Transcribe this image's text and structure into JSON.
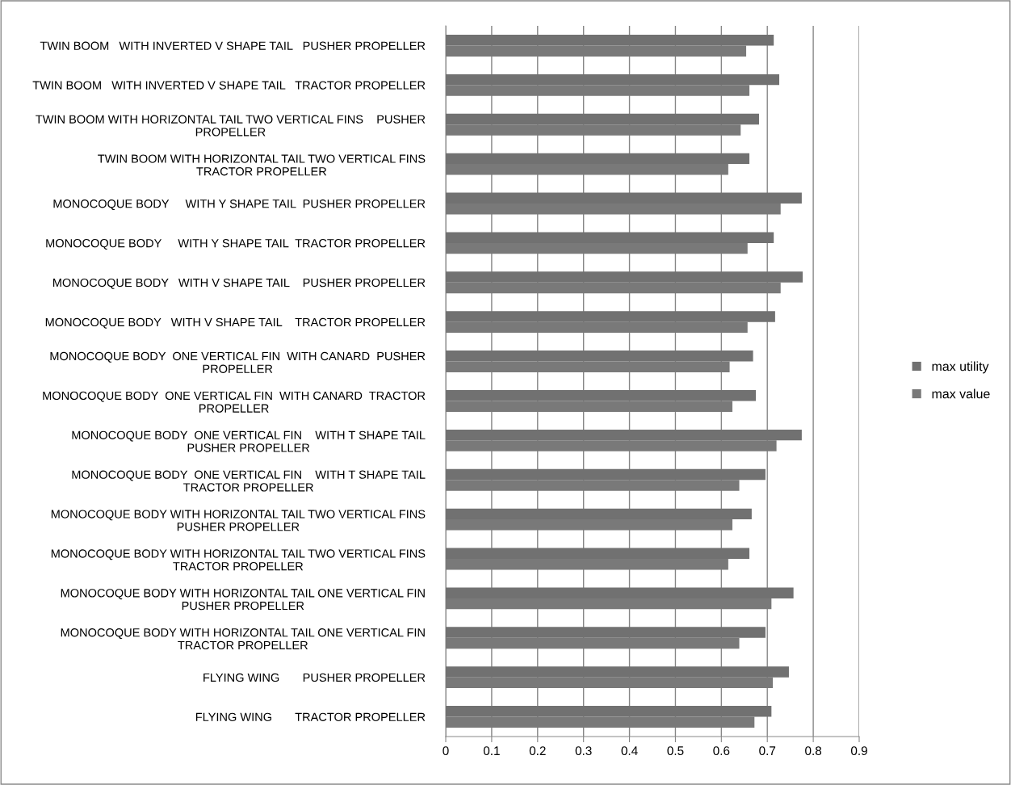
{
  "chart_data": {
    "type": "bar",
    "orientation": "horizontal",
    "categories": [
      "TWIN BOOM   WITH INVERTED V SHAPE TAIL   PUSHER PROPELLER",
      "TWIN BOOM   WITH INVERTED V SHAPE TAIL   TRACTOR PROPELLER",
      "TWIN BOOM WITH HORIZONTAL TAIL TWO VERTICAL FINS    PUSHER\nPROPELLER",
      "TWIN BOOM WITH HORIZONTAL TAIL TWO VERTICAL FINS\nTRACTOR PROPELLER",
      "MONOCOQUE BODY     WITH Y SHAPE TAIL  PUSHER PROPELLER",
      "MONOCOQUE BODY     WITH Y SHAPE TAIL  TRACTOR PROPELLER",
      "MONOCOQUE BODY   WITH V SHAPE TAIL    PUSHER PROPELLER",
      "MONOCOQUE BODY   WITH V SHAPE TAIL    TRACTOR PROPELLER",
      "MONOCOQUE BODY  ONE VERTICAL FIN  WITH CANARD  PUSHER\nPROPELLER",
      "MONOCOQUE BODY  ONE VERTICAL FIN  WITH CANARD  TRACTOR\nPROPELLER",
      "MONOCOQUE BODY  ONE VERTICAL FIN    WITH T SHAPE TAIL\nPUSHER PROPELLER",
      "MONOCOQUE BODY  ONE VERTICAL FIN    WITH T SHAPE TAIL\nTRACTOR PROPELLER",
      "MONOCOQUE BODY WITH HORIZONTAL TAIL TWO VERTICAL FINS\nPUSHER PROPELLER",
      "MONOCOQUE BODY WITH HORIZONTAL TAIL TWO VERTICAL FINS\nTRACTOR PROPELLER",
      "MONOCOQUE BODY WITH HORIZONTAL TAIL ONE VERTICAL FIN\nPUSHER PROPELLER",
      "MONOCOQUE BODY WITH HORIZONTAL TAIL ONE VERTICAL FIN\nTRACTOR PROPELLER",
      "FLYING WING       PUSHER PROPELLER",
      "FLYING WING       TRACTOR PROPELLER"
    ],
    "series": [
      {
        "name": "max utility",
        "color": "#717171",
        "values": [
          0.714,
          0.726,
          0.682,
          0.661,
          0.775,
          0.714,
          0.777,
          0.717,
          0.669,
          0.675,
          0.775,
          0.696,
          0.666,
          0.661,
          0.757,
          0.696,
          0.747,
          0.709
        ]
      },
      {
        "name": "max value",
        "color": "#797979",
        "values": [
          0.654,
          0.661,
          0.642,
          0.615,
          0.729,
          0.657,
          0.729,
          0.657,
          0.618,
          0.624,
          0.72,
          0.639,
          0.624,
          0.615,
          0.709,
          0.639,
          0.712,
          0.672
        ]
      }
    ],
    "xlim": [
      0,
      0.9
    ],
    "xticks": [
      0,
      0.1,
      0.2,
      0.3,
      0.4,
      0.5,
      0.6,
      0.7,
      0.8,
      0.9
    ],
    "grid": "x",
    "legend": "right"
  }
}
